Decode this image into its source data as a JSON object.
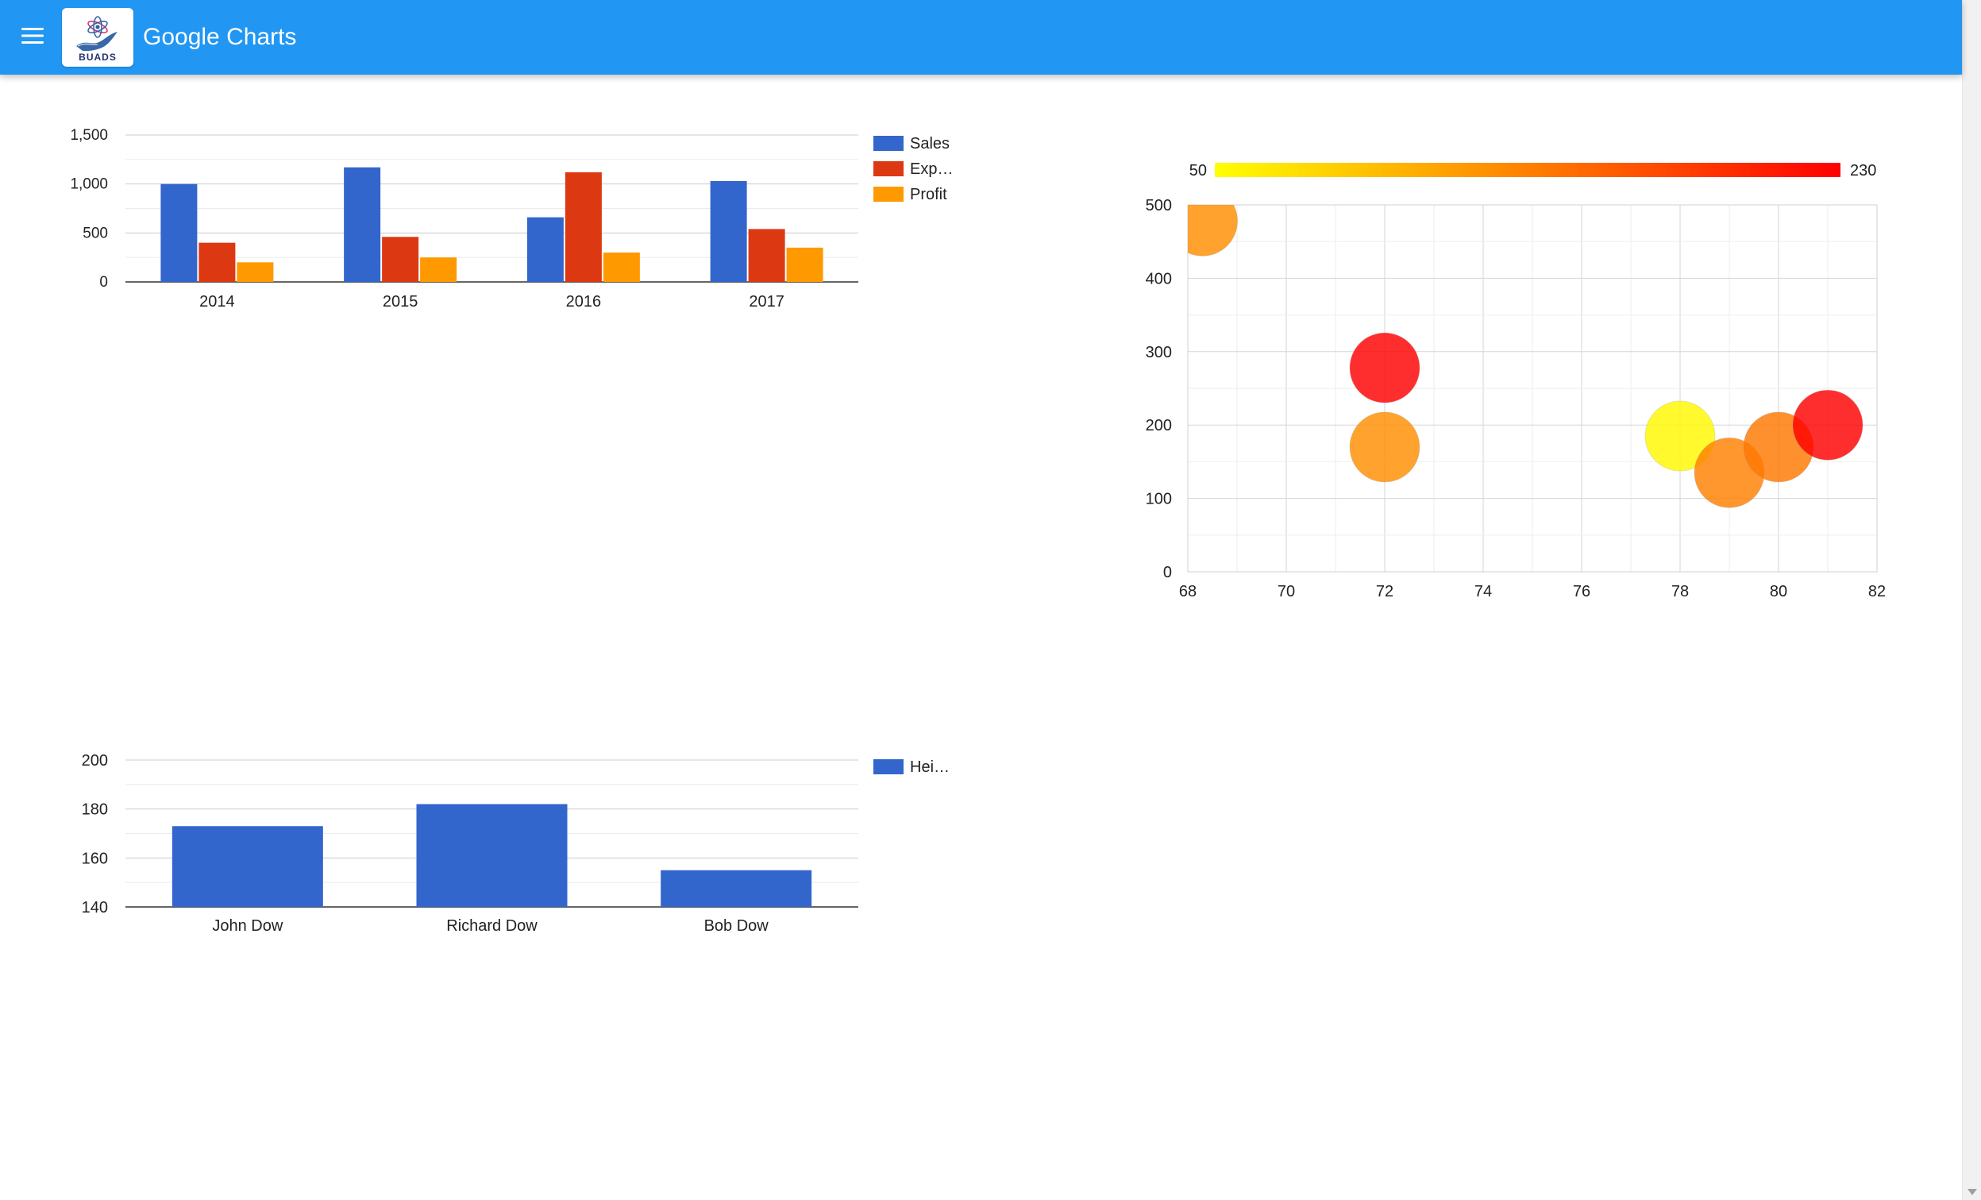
{
  "header": {
    "title": "Google Charts",
    "logo_text": "BUADS",
    "background_color": "#2196f3",
    "menu_icon": "hamburger-menu-icon"
  },
  "chart_data": [
    {
      "type": "bar",
      "categories": [
        "2014",
        "2015",
        "2016",
        "2017"
      ],
      "series": [
        {
          "name": "Sales",
          "values": [
            1000,
            1170,
            660,
            1030
          ],
          "color": "#3366cc"
        },
        {
          "name": "Exp…",
          "values": [
            400,
            460,
            1120,
            540
          ],
          "color": "#dc3912"
        },
        {
          "name": "Profit",
          "values": [
            200,
            250,
            300,
            350
          ],
          "color": "#ff9900"
        }
      ],
      "ylim": [
        0,
        1500
      ],
      "yticks": [
        0,
        500,
        1000,
        1500
      ],
      "ytick_labels": [
        "0",
        "500",
        "1,000",
        "1,500"
      ],
      "grid": true,
      "legend": "right"
    },
    {
      "type": "scatter",
      "points": [
        {
          "x": 68.3,
          "y": 478,
          "color_value": 130
        },
        {
          "x": 72,
          "y": 278,
          "color_value": 230
        },
        {
          "x": 72,
          "y": 170,
          "color_value": 130
        },
        {
          "x": 78,
          "y": 185,
          "color_value": 55
        },
        {
          "x": 79,
          "y": 135,
          "color_value": 140
        },
        {
          "x": 80,
          "y": 170,
          "color_value": 145
        },
        {
          "x": 81,
          "y": 200,
          "color_value": 230
        }
      ],
      "xlim": [
        68,
        82
      ],
      "ylim": [
        0,
        500
      ],
      "xticks": [
        68,
        70,
        72,
        74,
        76,
        78,
        80,
        82
      ],
      "yticks": [
        0,
        100,
        200,
        300,
        400,
        500
      ],
      "grid": true,
      "colorAxis": {
        "min": 50,
        "max": 230,
        "min_label": "50",
        "max_label": "230",
        "colors": [
          "#ffff00",
          "#ff0000"
        ]
      }
    },
    {
      "type": "bar",
      "categories": [
        "John Dow",
        "Richard Dow",
        "Bob Dow"
      ],
      "series": [
        {
          "name": "Hei…",
          "values": [
            173,
            182,
            155
          ],
          "color": "#3366cc"
        }
      ],
      "ylim": [
        140,
        200
      ],
      "yticks": [
        140,
        160,
        180,
        200
      ],
      "ytick_labels": [
        "140",
        "160",
        "180",
        "200"
      ],
      "grid": true,
      "legend": "right"
    }
  ]
}
